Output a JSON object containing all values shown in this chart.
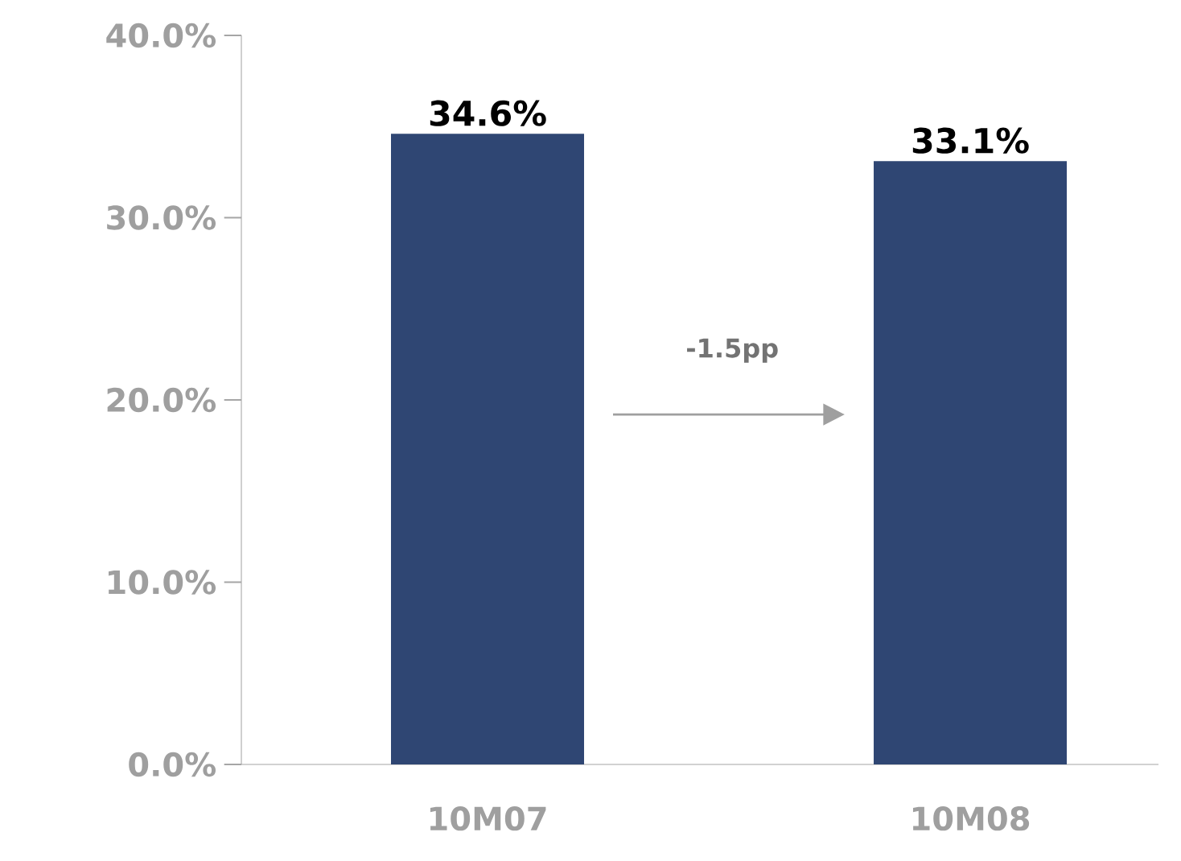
{
  "chart_data": {
    "type": "bar",
    "categories": [
      "10M07",
      "10M08"
    ],
    "values": [
      34.6,
      33.1
    ],
    "color": "#2f4673",
    "value_labels": [
      "34.6%",
      "33.1%"
    ],
    "ylim": [
      0,
      40
    ],
    "yticks": [
      {
        "value": 0,
        "label": "0.0%"
      },
      {
        "value": 10,
        "label": "10.0%"
      },
      {
        "value": 20,
        "label": "20.0%"
      },
      {
        "value": 30,
        "label": "30.0%"
      },
      {
        "value": 40,
        "label": "40.0%"
      }
    ],
    "annotations": [
      "-1.5pp"
    ]
  }
}
